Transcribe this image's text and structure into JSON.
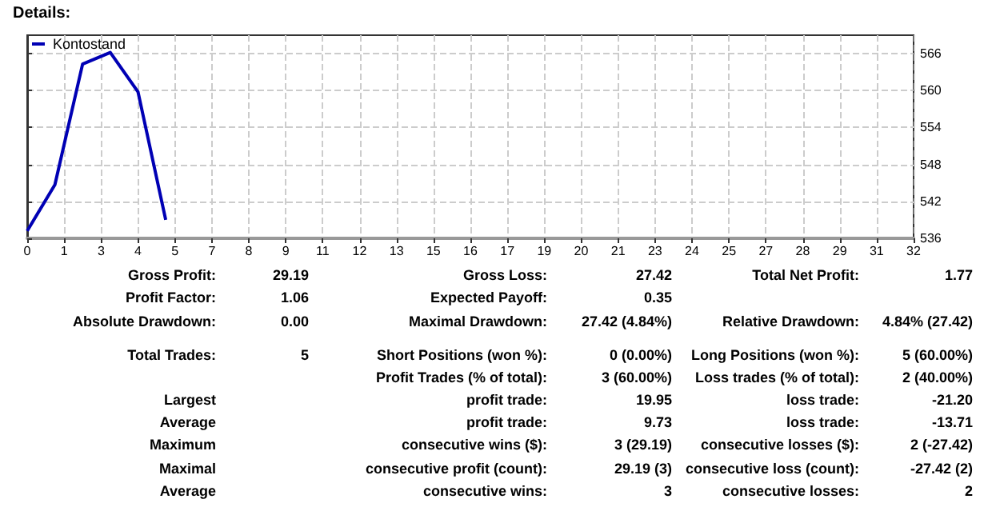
{
  "chart_data": {
    "type": "line",
    "title": "Details:",
    "x": [
      0,
      1,
      2,
      3,
      4,
      5
    ],
    "series": [
      {
        "name": "Kontostand",
        "color": "#0000b4",
        "values": [
          537.2,
          544.7,
          564.3,
          566.2,
          559.8,
          539.0
        ]
      }
    ],
    "xlim": [
      0,
      32
    ],
    "xticks": [
      0,
      {
        "value": 1.333,
        "label": "1"
      },
      {
        "value": 2.667,
        "label": "3"
      },
      4,
      {
        "value": 5.333,
        "label": "5"
      },
      {
        "value": 6.667,
        "label": "7"
      },
      8,
      {
        "value": 9.333,
        "label": "9"
      },
      {
        "value": 10.667,
        "label": "11"
      },
      12,
      {
        "value": 13.333,
        "label": "13"
      },
      {
        "value": 14.667,
        "label": "15"
      },
      16,
      {
        "value": 17.333,
        "label": "17"
      },
      {
        "value": 18.667,
        "label": "19"
      },
      20,
      {
        "value": 21.333,
        "label": "21"
      },
      {
        "value": 22.667,
        "label": "23"
      },
      24,
      {
        "value": 25.333,
        "label": "25"
      },
      {
        "value": 26.667,
        "label": "27"
      },
      28,
      {
        "value": 29.333,
        "label": "29"
      },
      {
        "value": 30.667,
        "label": "31"
      },
      32
    ],
    "ylim": [
      536,
      569
    ],
    "yticks": [
      536,
      542,
      548,
      554,
      560,
      566
    ],
    "grid": true,
    "legend": "top left",
    "marker": "none",
    "line_style": "solid",
    "annotations": [
      "Gross Profit:",
      "29.19",
      "Gross Loss:",
      "27.42",
      "Total Net Profit:",
      "1.77",
      "Profit Factor:",
      "1.06",
      "Expected Payoff:",
      "0.35",
      "Absolute Drawdown:",
      "0.00",
      "Maximal Drawdown:",
      "27.42 (4.84%)",
      "Relative Drawdown:",
      "4.84% (27.42)",
      "Total Trades:",
      "5",
      "Short Positions (won %):",
      "0 (0.00%)",
      "Long Positions (won %):",
      "5 (60.00%)",
      "Profit Trades (% of total):",
      "3 (60.00%)",
      "Loss trades (% of total):",
      "2 (40.00%)",
      "Largest",
      "profit trade:",
      "19.95",
      "loss trade:",
      "-21.20",
      "Average",
      "profit trade:",
      "9.73",
      "loss trade:",
      "-13.71",
      "Maximum",
      "consecutive wins ($):",
      "3 (29.19)",
      "consecutive losses ($):",
      "2 (-27.42)",
      "Maximal",
      "consecutive profit (count):",
      "29.19 (3)",
      "consecutive loss (count):",
      "-27.42 (2)",
      "Average",
      "consecutive wins:",
      "3",
      "consecutive losses:",
      "2"
    ]
  }
}
